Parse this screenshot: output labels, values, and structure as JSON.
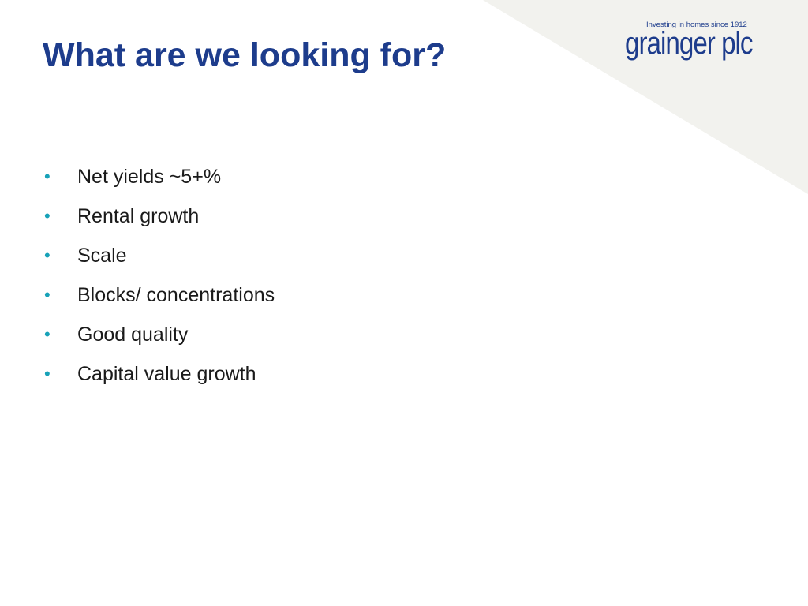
{
  "slide": {
    "title": "What are we looking for?",
    "bullets": [
      "Net yields ~5+%",
      "Rental growth",
      "Scale",
      "Blocks/ concentrations",
      "Good quality",
      "Capital value growth"
    ],
    "bullet_glyph": "•"
  },
  "logo": {
    "tagline": "Investing in homes since 1912",
    "wordmark": "grainger plc"
  },
  "colors": {
    "title": "#1d3c8c",
    "bullet": "#17a2b8",
    "body_text": "#1a1a1a",
    "logo": "#1d3c8c",
    "background_shape": "#f2f2ee",
    "background": "#ffffff"
  }
}
